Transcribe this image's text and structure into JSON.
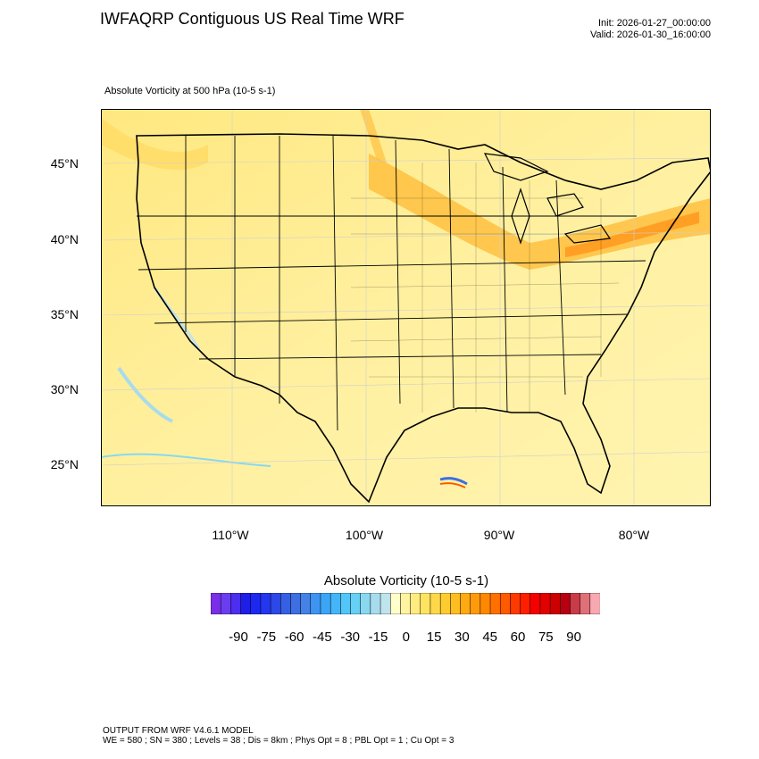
{
  "title": "IWFAQRP Contiguous US Real Time WRF",
  "init": "Init: 2026-01-27_00:00:00",
  "valid": "Valid: 2026-01-30_16:00:00",
  "field_label": "Absolute Vorticity at 500 hPa   (10-5 s-1)",
  "lat_labels": [
    "45°N",
    "40°N",
    "35°N",
    "30°N",
    "25°N"
  ],
  "lon_labels": [
    "110°W",
    "100°W",
    "90°W",
    "80°W"
  ],
  "colorbar": {
    "title": "Absolute Vorticity  (10-5 s-1)",
    "tick_labels": [
      "-90",
      "-75",
      "-60",
      "-45",
      "-30",
      "-15",
      "0",
      "15",
      "30",
      "45",
      "60",
      "75",
      "90"
    ],
    "colors": [
      "#7a2ee8",
      "#6a3df0",
      "#4b2ef0",
      "#1e1ee8",
      "#1c28f0",
      "#2336f0",
      "#2c48e6",
      "#3660e4",
      "#3d6ee2",
      "#4482e6",
      "#3e94f2",
      "#3ca6f6",
      "#44b6f8",
      "#52c6f8",
      "#66d0f6",
      "#88d8f0",
      "#a8dcec",
      "#c0e4ee",
      "#ffffcc",
      "#fff4a0",
      "#ffec80",
      "#ffe460",
      "#ffd84a",
      "#ffcc30",
      "#ffbe20",
      "#ffaa10",
      "#ff9a0a",
      "#ff8800",
      "#ff7000",
      "#ff5a00",
      "#ff3a00",
      "#ff1e00",
      "#f40000",
      "#e20000",
      "#cc0000",
      "#b80010",
      "#c83c48",
      "#e07078",
      "#f8a8b0"
    ]
  },
  "footer": {
    "line1": "OUTPUT FROM WRF V4.6.1 MODEL",
    "line2": "WE = 580 ; SN = 380 ; Levels = 38 ; Dis = 8km ; Phys Opt = 8 ; PBL Opt = 1 ; Cu Opt = 3"
  }
}
